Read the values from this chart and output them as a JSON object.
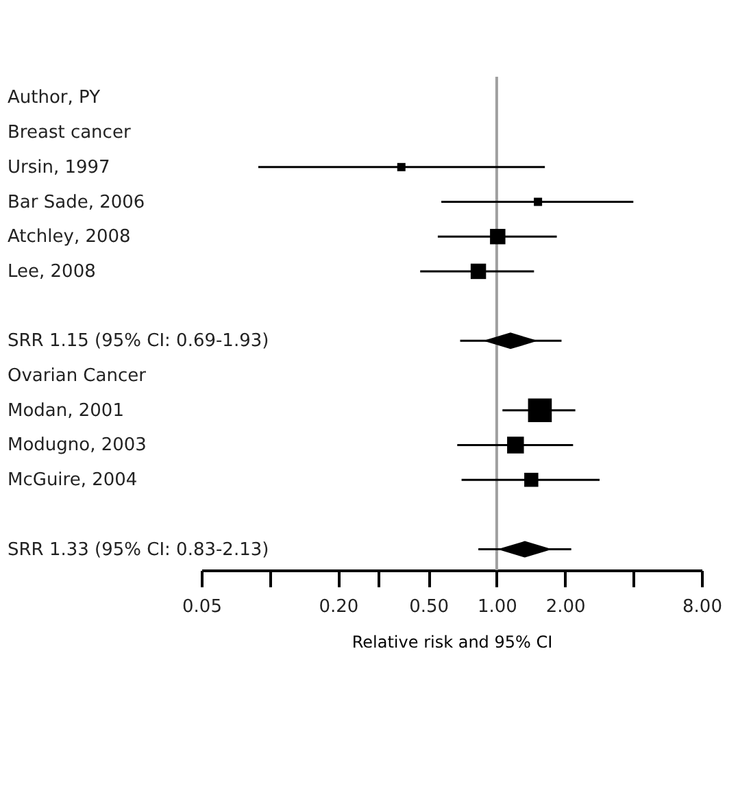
{
  "chart_data": {
    "type": "scatter",
    "orientation": "horizontal",
    "log": "x",
    "xlabel": "Relative risk and 95% CI",
    "categories": [
      "Author, PY",
      "Breast cancer",
      "Ursin, 1997",
      "Bar Sade, 2006",
      "Atchley, 2008",
      "Lee, 2008",
      null,
      "SRR 1.15 (95% CI: 0.69-1.93)",
      "Ovarian Cancer",
      "Modan, 2001",
      "Modugno, 2003",
      "McGuire, 2004",
      null,
      "SRR 1.33 (95% CI: 0.83-2.13)"
    ],
    "series": [
      {
        "type": "bubble",
        "marker": "square",
        "color": "#000000",
        "values": [
          null,
          null,
          0.38,
          1.52,
          1.01,
          0.83,
          null,
          null,
          null,
          1.55,
          1.21,
          1.42,
          null,
          null
        ],
        "errors": [
          null,
          null,
          [
            0.089,
            1.63
          ],
          [
            0.57,
            4.0
          ],
          [
            0.55,
            1.84
          ],
          [
            0.46,
            1.46
          ],
          null,
          null,
          null,
          [
            1.06,
            2.22
          ],
          [
            0.67,
            2.17
          ],
          [
            0.7,
            2.84
          ],
          null,
          null
        ],
        "sizes": [
          null,
          null,
          0.12,
          0.12,
          0.42,
          0.42,
          null,
          null,
          null,
          1,
          0.5,
          0.35,
          null,
          null
        ]
      },
      {
        "marker": "diamond",
        "color": "#000000",
        "values": [
          null,
          null,
          null,
          null,
          null,
          null,
          null,
          1.15,
          null,
          null,
          null,
          null,
          null,
          1.33
        ],
        "errors": [
          null,
          null,
          null,
          null,
          null,
          null,
          null,
          [
            0.69,
            1.93
          ],
          null,
          null,
          null,
          null,
          null,
          [
            0.83,
            2.13
          ]
        ]
      }
    ],
    "xlim": [
      0.05,
      8
    ],
    "xticks": [
      0.05,
      {
        "value": 0.1,
        "label": null
      },
      {
        "value": 0.2,
        "label": "0.20"
      },
      {
        "value": 0.3,
        "label": null
      },
      {
        "value": 0.5,
        "label": "0.50"
      },
      {
        "value": 1,
        "label": "1.00"
      },
      {
        "value": 2,
        "label": "2.00"
      },
      {
        "value": 4,
        "label": null
      },
      {
        "value": 8,
        "label": "8.00"
      }
    ],
    "ref_lines": [
      {
        "axis": "x",
        "value": 1,
        "color": "#a0a0a0"
      }
    ],
    "grid": false
  }
}
